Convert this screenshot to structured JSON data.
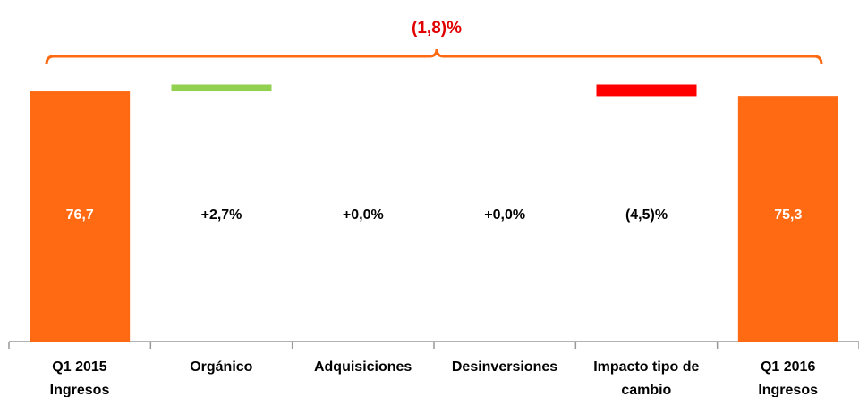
{
  "chart_data": {
    "type": "waterfall",
    "annotation": "(1,8)%",
    "categories": [
      "Q1 2015\nIngresos",
      "Orgánico",
      "Adquisiciones",
      "Desinversiones",
      "Impacto tipo de\ncambio",
      "Q1 2016\nIngresos"
    ],
    "values": [
      76.7,
      2.7,
      0.0,
      0.0,
      -4.5,
      75.3
    ],
    "value_labels": [
      "76,7",
      "+2,7%",
      "+0,0%",
      "+0,0%",
      "(4,5)%",
      "75,3"
    ],
    "colors": {
      "total": "#ff6a13",
      "increase": "#92d050",
      "decrease": "#ff0000"
    },
    "ylim": [
      0,
      80
    ]
  }
}
